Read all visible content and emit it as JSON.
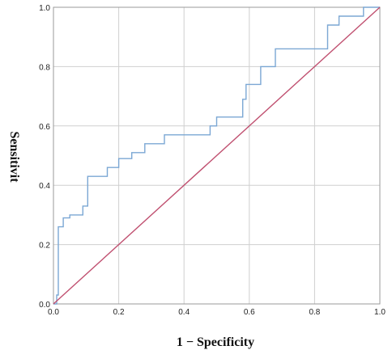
{
  "chart_data": {
    "type": "line",
    "title": "",
    "xlabel": "1 − Specificity",
    "ylabel": "Sensitivit",
    "xlim": [
      0,
      1
    ],
    "ylim": [
      0,
      1
    ],
    "grid": true,
    "x_ticks": [
      "0.0",
      "0.2",
      "0.4",
      "0.6",
      "0.8",
      "1.0"
    ],
    "y_ticks": [
      "0.0",
      "0.2",
      "0.4",
      "0.6",
      "0.8",
      "1.0"
    ],
    "series": [
      {
        "color": "#7ba7d4",
        "step": true,
        "x": [
          0.0,
          0.01,
          0.01,
          0.015,
          0.015,
          0.03,
          0.03,
          0.05,
          0.05,
          0.09,
          0.09,
          0.105,
          0.105,
          0.165,
          0.165,
          0.2,
          0.2,
          0.24,
          0.24,
          0.28,
          0.28,
          0.34,
          0.34,
          0.48,
          0.48,
          0.5,
          0.5,
          0.58,
          0.58,
          0.59,
          0.59,
          0.635,
          0.635,
          0.68,
          0.68,
          0.84,
          0.84,
          0.875,
          0.875,
          0.95,
          0.95,
          1.0
        ],
        "y": [
          0.0,
          0.0,
          0.03,
          0.03,
          0.26,
          0.26,
          0.29,
          0.29,
          0.3,
          0.3,
          0.33,
          0.33,
          0.43,
          0.43,
          0.46,
          0.46,
          0.49,
          0.49,
          0.51,
          0.51,
          0.54,
          0.54,
          0.57,
          0.57,
          0.6,
          0.6,
          0.63,
          0.63,
          0.69,
          0.69,
          0.74,
          0.74,
          0.8,
          0.8,
          0.86,
          0.86,
          0.94,
          0.94,
          0.97,
          0.97,
          1.0,
          1.0
        ]
      },
      {
        "color": "#c05070",
        "step": false,
        "x": [
          0,
          1
        ],
        "y": [
          0,
          1
        ]
      }
    ]
  }
}
